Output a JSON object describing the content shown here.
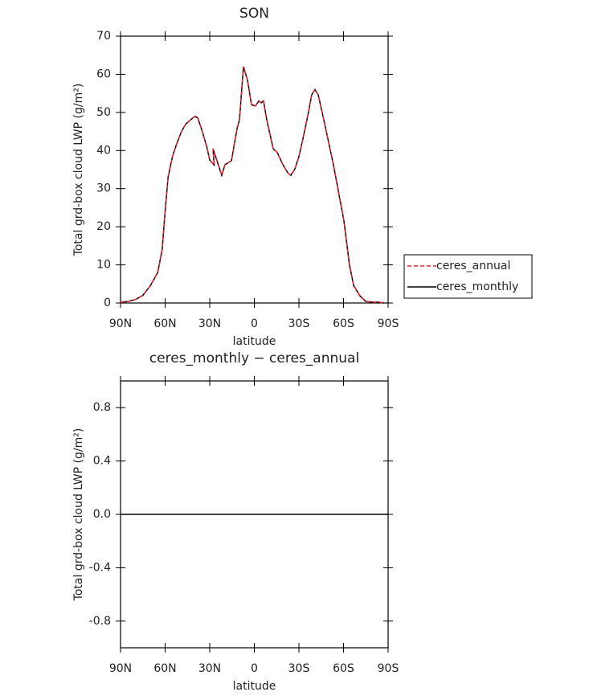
{
  "chart_data": [
    {
      "type": "line",
      "title": "SON",
      "x_label": "latitude",
      "y_label": "Total grd-box cloud LWP (g/m²)",
      "x": [
        90,
        85,
        80,
        75,
        70,
        65,
        62,
        60,
        58,
        55,
        52,
        49,
        46,
        43,
        40,
        38,
        35,
        32,
        30,
        27,
        27.8,
        21.9,
        19.7,
        15.4,
        11.6,
        10,
        7.3,
        4.6,
        1.9,
        -0.8,
        -3,
        -4.6,
        -6.2,
        -8.4,
        -12.7,
        -15.4,
        -19.2,
        -22.4,
        -24.6,
        -27.3,
        -30,
        -33.2,
        -35.9,
        -38.6,
        -40.8,
        -43,
        -46.2,
        -53.2,
        -60.3,
        -64,
        -66.8,
        -71,
        -75,
        -80.3,
        -84,
        -87.3
      ],
      "series": [
        {
          "name": "ceres_annual",
          "color": "#e8202a",
          "dash": true,
          "values": [
            0.2,
            0.4,
            0.9,
            2,
            4.5,
            8,
            14,
            24,
            33,
            38.5,
            42,
            45,
            47,
            48,
            49,
            48.5,
            45,
            41,
            37.5,
            36.2,
            40.5,
            33.5,
            36.3,
            37.3,
            45.8,
            48,
            62,
            58.5,
            52,
            51.7,
            53,
            52.5,
            53,
            48,
            40.5,
            39.5,
            36.3,
            34.2,
            33.5,
            35.2,
            38.4,
            44,
            49,
            54.6,
            56,
            54.6,
            49,
            36.3,
            21.5,
            10,
            4.6,
            1.9,
            0.4,
            0.2,
            0.2,
            0
          ]
        },
        {
          "name": "ceres_monthly",
          "color": "#000000",
          "dash": false,
          "values": [
            0.2,
            0.4,
            0.9,
            2,
            4.5,
            8,
            14,
            24,
            33,
            38.5,
            42,
            45,
            47,
            48,
            49,
            48.5,
            45,
            41,
            37.5,
            36.2,
            40.5,
            33.5,
            36.3,
            37.3,
            45.8,
            48,
            62,
            58.5,
            52,
            51.7,
            53,
            52.5,
            53,
            48,
            40.5,
            39.5,
            36.3,
            34.2,
            33.5,
            35.2,
            38.4,
            44,
            49,
            54.6,
            56,
            54.6,
            49,
            36.3,
            21.5,
            10,
            4.6,
            1.9,
            0.4,
            0.2,
            0.2,
            0
          ]
        }
      ],
      "xlim": [
        90,
        -90
      ],
      "xticks": [
        {
          "value": 90,
          "label": "90N"
        },
        {
          "value": 60,
          "label": "60N"
        },
        {
          "value": 30,
          "label": "30N"
        },
        0,
        {
          "value": -30,
          "label": "30S"
        },
        {
          "value": -60,
          "label": "60S"
        },
        {
          "value": -90,
          "label": "90S"
        }
      ],
      "ylim": [
        0,
        70
      ],
      "yticks": [
        0,
        10,
        20,
        30,
        40,
        50,
        60,
        70
      ],
      "legend": "outside-right"
    },
    {
      "type": "line",
      "title": "ceres_monthly − ceres_annual",
      "x_label": "latitude",
      "y_label": "Total grd-box cloud LWP (g/m²)",
      "x": [
        90,
        60,
        30,
        0,
        -30,
        -60,
        -90
      ],
      "series": [
        {
          "color": "#000000",
          "dash": false,
          "values": [
            0,
            0,
            0,
            0,
            0,
            0,
            0
          ]
        }
      ],
      "xlim": [
        90,
        -90
      ],
      "xticks": [
        {
          "value": 90,
          "label": "90N"
        },
        {
          "value": 60,
          "label": "60N"
        },
        {
          "value": 30,
          "label": "30N"
        },
        0,
        {
          "value": -30,
          "label": "30S"
        },
        {
          "value": -60,
          "label": "60S"
        },
        {
          "value": -90,
          "label": "90S"
        }
      ],
      "ylim": [
        -1,
        1
      ],
      "yticks": [
        -0.8,
        -0.4,
        {
          "value": 0,
          "label": "0.0"
        },
        0.4,
        0.8
      ]
    }
  ]
}
